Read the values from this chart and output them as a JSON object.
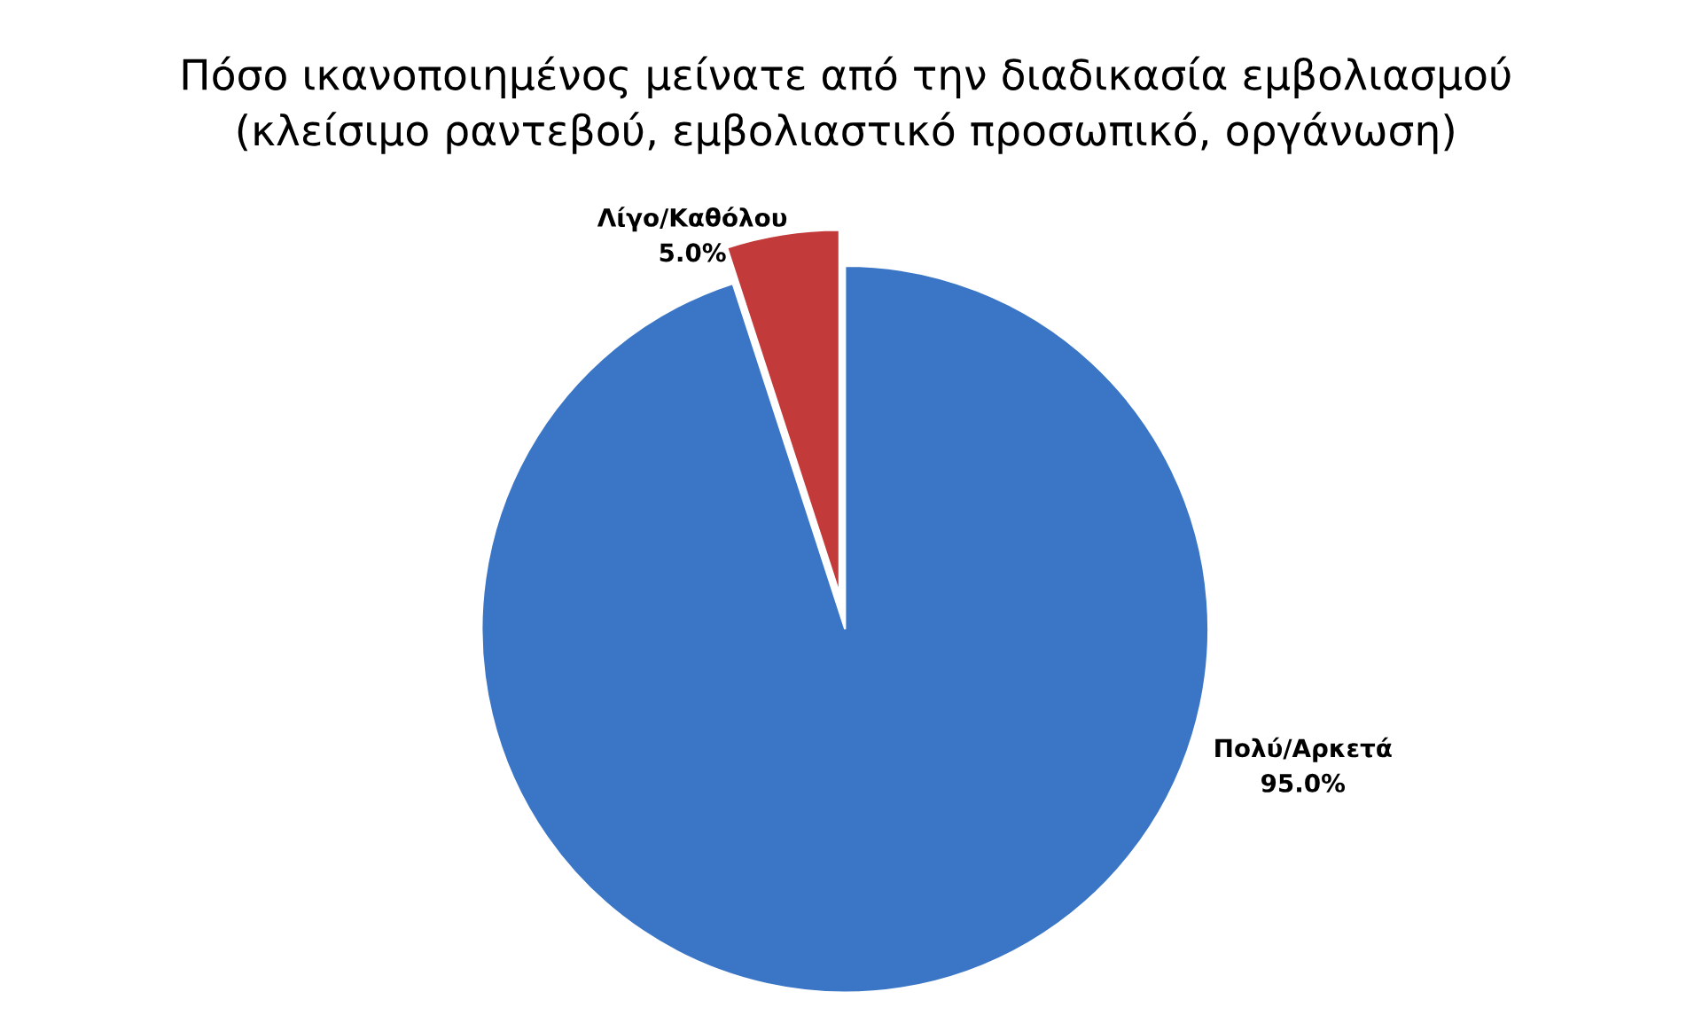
{
  "chart_data": {
    "type": "pie",
    "title": "Πόσο ικανοποιημένος μείνατε από την διαδικασία εμβολιασμού\n(κλείσιμο ραντεβού, εμβολιαστικό προσωπικό, οργάνωση)",
    "categories": [
      "Πολύ/Αρκετά",
      "Λίγο/Καθόλου"
    ],
    "values": [
      95.0,
      5.0
    ],
    "colors": [
      "#3b76c6",
      "#c23a3a"
    ],
    "value_labels": [
      "95.0%",
      "5.0%"
    ]
  }
}
